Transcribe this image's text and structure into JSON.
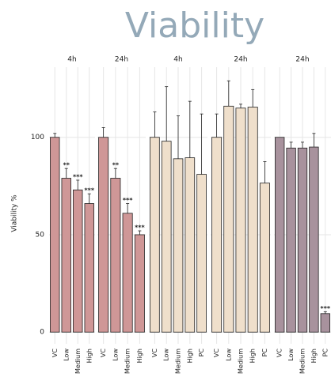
{
  "figure": {
    "title": "Viability",
    "y_label": "Viability %",
    "ylim": [
      -6,
      136
    ],
    "yticks": [
      0,
      50,
      100
    ]
  },
  "chart_data": [
    {
      "type": "bar",
      "title": "4h",
      "color": "#cf9797",
      "categories": [
        "VC",
        "Low",
        "Medium",
        "High"
      ],
      "values": [
        100,
        79,
        73,
        66
      ],
      "errors": [
        2,
        5,
        5,
        5
      ],
      "annotations": [
        null,
        "**",
        "***",
        "***"
      ]
    },
    {
      "type": "bar",
      "title": "24h",
      "color": "#cf9797",
      "categories": [
        "VC",
        "Low",
        "Medium",
        "High"
      ],
      "values": [
        100,
        79,
        61,
        50
      ],
      "errors": [
        5,
        5,
        5,
        2
      ],
      "annotations": [
        null,
        "**",
        "***",
        "***"
      ]
    },
    {
      "type": "bar",
      "title": "4h",
      "color": "#efdfcb",
      "categories": [
        "VC",
        "Low",
        "Medium",
        "High",
        "PC"
      ],
      "values": [
        100,
        98,
        89,
        89.5,
        81
      ],
      "errors": [
        13,
        28,
        22,
        29,
        31
      ],
      "annotations": [
        null,
        null,
        null,
        null,
        null
      ]
    },
    {
      "type": "bar",
      "title": "24h",
      "color": "#efdfcb",
      "categories": [
        "VC",
        "Low",
        "Medium",
        "High",
        "PC"
      ],
      "values": [
        100,
        116,
        115,
        115.5,
        76.5
      ],
      "errors": [
        12,
        13,
        2,
        9,
        11
      ],
      "annotations": [
        null,
        null,
        null,
        null,
        null
      ]
    },
    {
      "type": "bar",
      "title": "24h",
      "color": "#a8929d",
      "categories": [
        "VC",
        "Low",
        "Medium",
        "High",
        "PC"
      ],
      "values": [
        100,
        94.5,
        94.5,
        95,
        9.5
      ],
      "errors": [
        0,
        3,
        3,
        7,
        1
      ],
      "annotations": [
        null,
        null,
        null,
        null,
        "***"
      ]
    }
  ]
}
